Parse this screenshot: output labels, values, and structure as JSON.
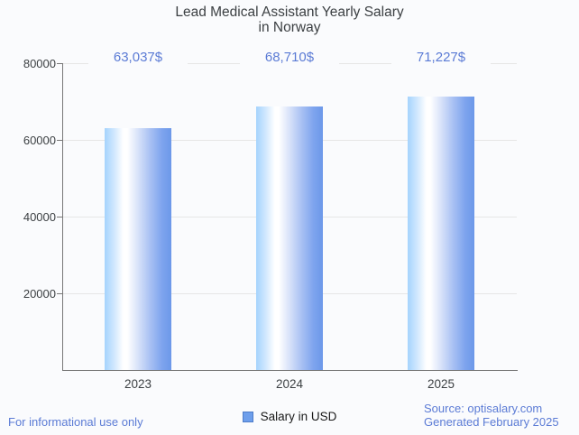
{
  "chart_data": {
    "type": "bar",
    "title": "Lead Medical Assistant Yearly Salary",
    "subtitle": "in Norway",
    "categories": [
      "2023",
      "2024",
      "2025"
    ],
    "series": [
      {
        "name": "Salary in USD",
        "values": [
          63037,
          68710,
          71227
        ]
      }
    ],
    "value_labels": [
      "63,037$",
      "68,710$",
      "71,227$"
    ],
    "ylabel": "",
    "xlabel": "",
    "ylim": [
      0,
      80000
    ],
    "yticks": [
      20000,
      40000,
      60000,
      80000
    ],
    "ytick_labels": [
      "20000",
      "40000",
      "60000",
      "80000"
    ],
    "grid": true,
    "legend_position": "bottom"
  },
  "legend": {
    "label": "Salary in USD"
  },
  "footer": {
    "disclaimer": "For informational use only",
    "source": "Source: optisalary.com",
    "generated": "Generated February 2025"
  },
  "colors": {
    "background": "#fafbfd",
    "bar_gradient_left": "#a5d3fd",
    "bar_gradient_highlight": "#ffffff",
    "bar_gradient_right": "#6c98e9",
    "annotation_blue": "#5b7bd5",
    "axis_gray": "#777777",
    "gridline_gray": "#e6e6e6",
    "text_dark": "#3c4043",
    "legend_fill": "#6d9eeb",
    "legend_border": "#4d7cc9"
  }
}
